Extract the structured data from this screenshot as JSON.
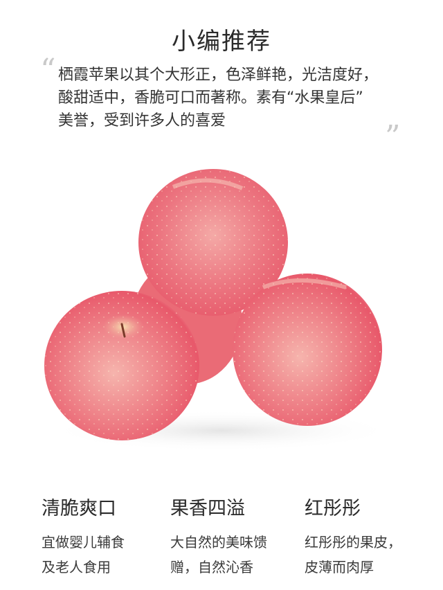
{
  "header": {
    "title": "小编推荐"
  },
  "intro": {
    "quote_open": "“",
    "quote_close": "”",
    "lines": [
      "栖霞苹果以其个大形正，色泽鲜艳，光洁度好，",
      "酸甜适中，香脆可口而著称。素有“水果皇后”",
      "美誉，受到许多人的喜爱"
    ]
  },
  "image": {
    "icon": "apple-photo",
    "colors": {
      "apple_red": "#e8485a",
      "apple_pink": "#f59aa0",
      "apple_light": "#fbd3c9"
    }
  },
  "features": [
    {
      "title": "清脆爽口",
      "lines": [
        "宜做婴儿辅食",
        "及老人食用"
      ]
    },
    {
      "title": "果香四溢",
      "lines": [
        "大自然的美味馈",
        "赠，自然沁香"
      ]
    },
    {
      "title": "红彤彤",
      "lines": [
        "红彤彤的果皮，",
        "皮薄而肉厚"
      ]
    }
  ]
}
